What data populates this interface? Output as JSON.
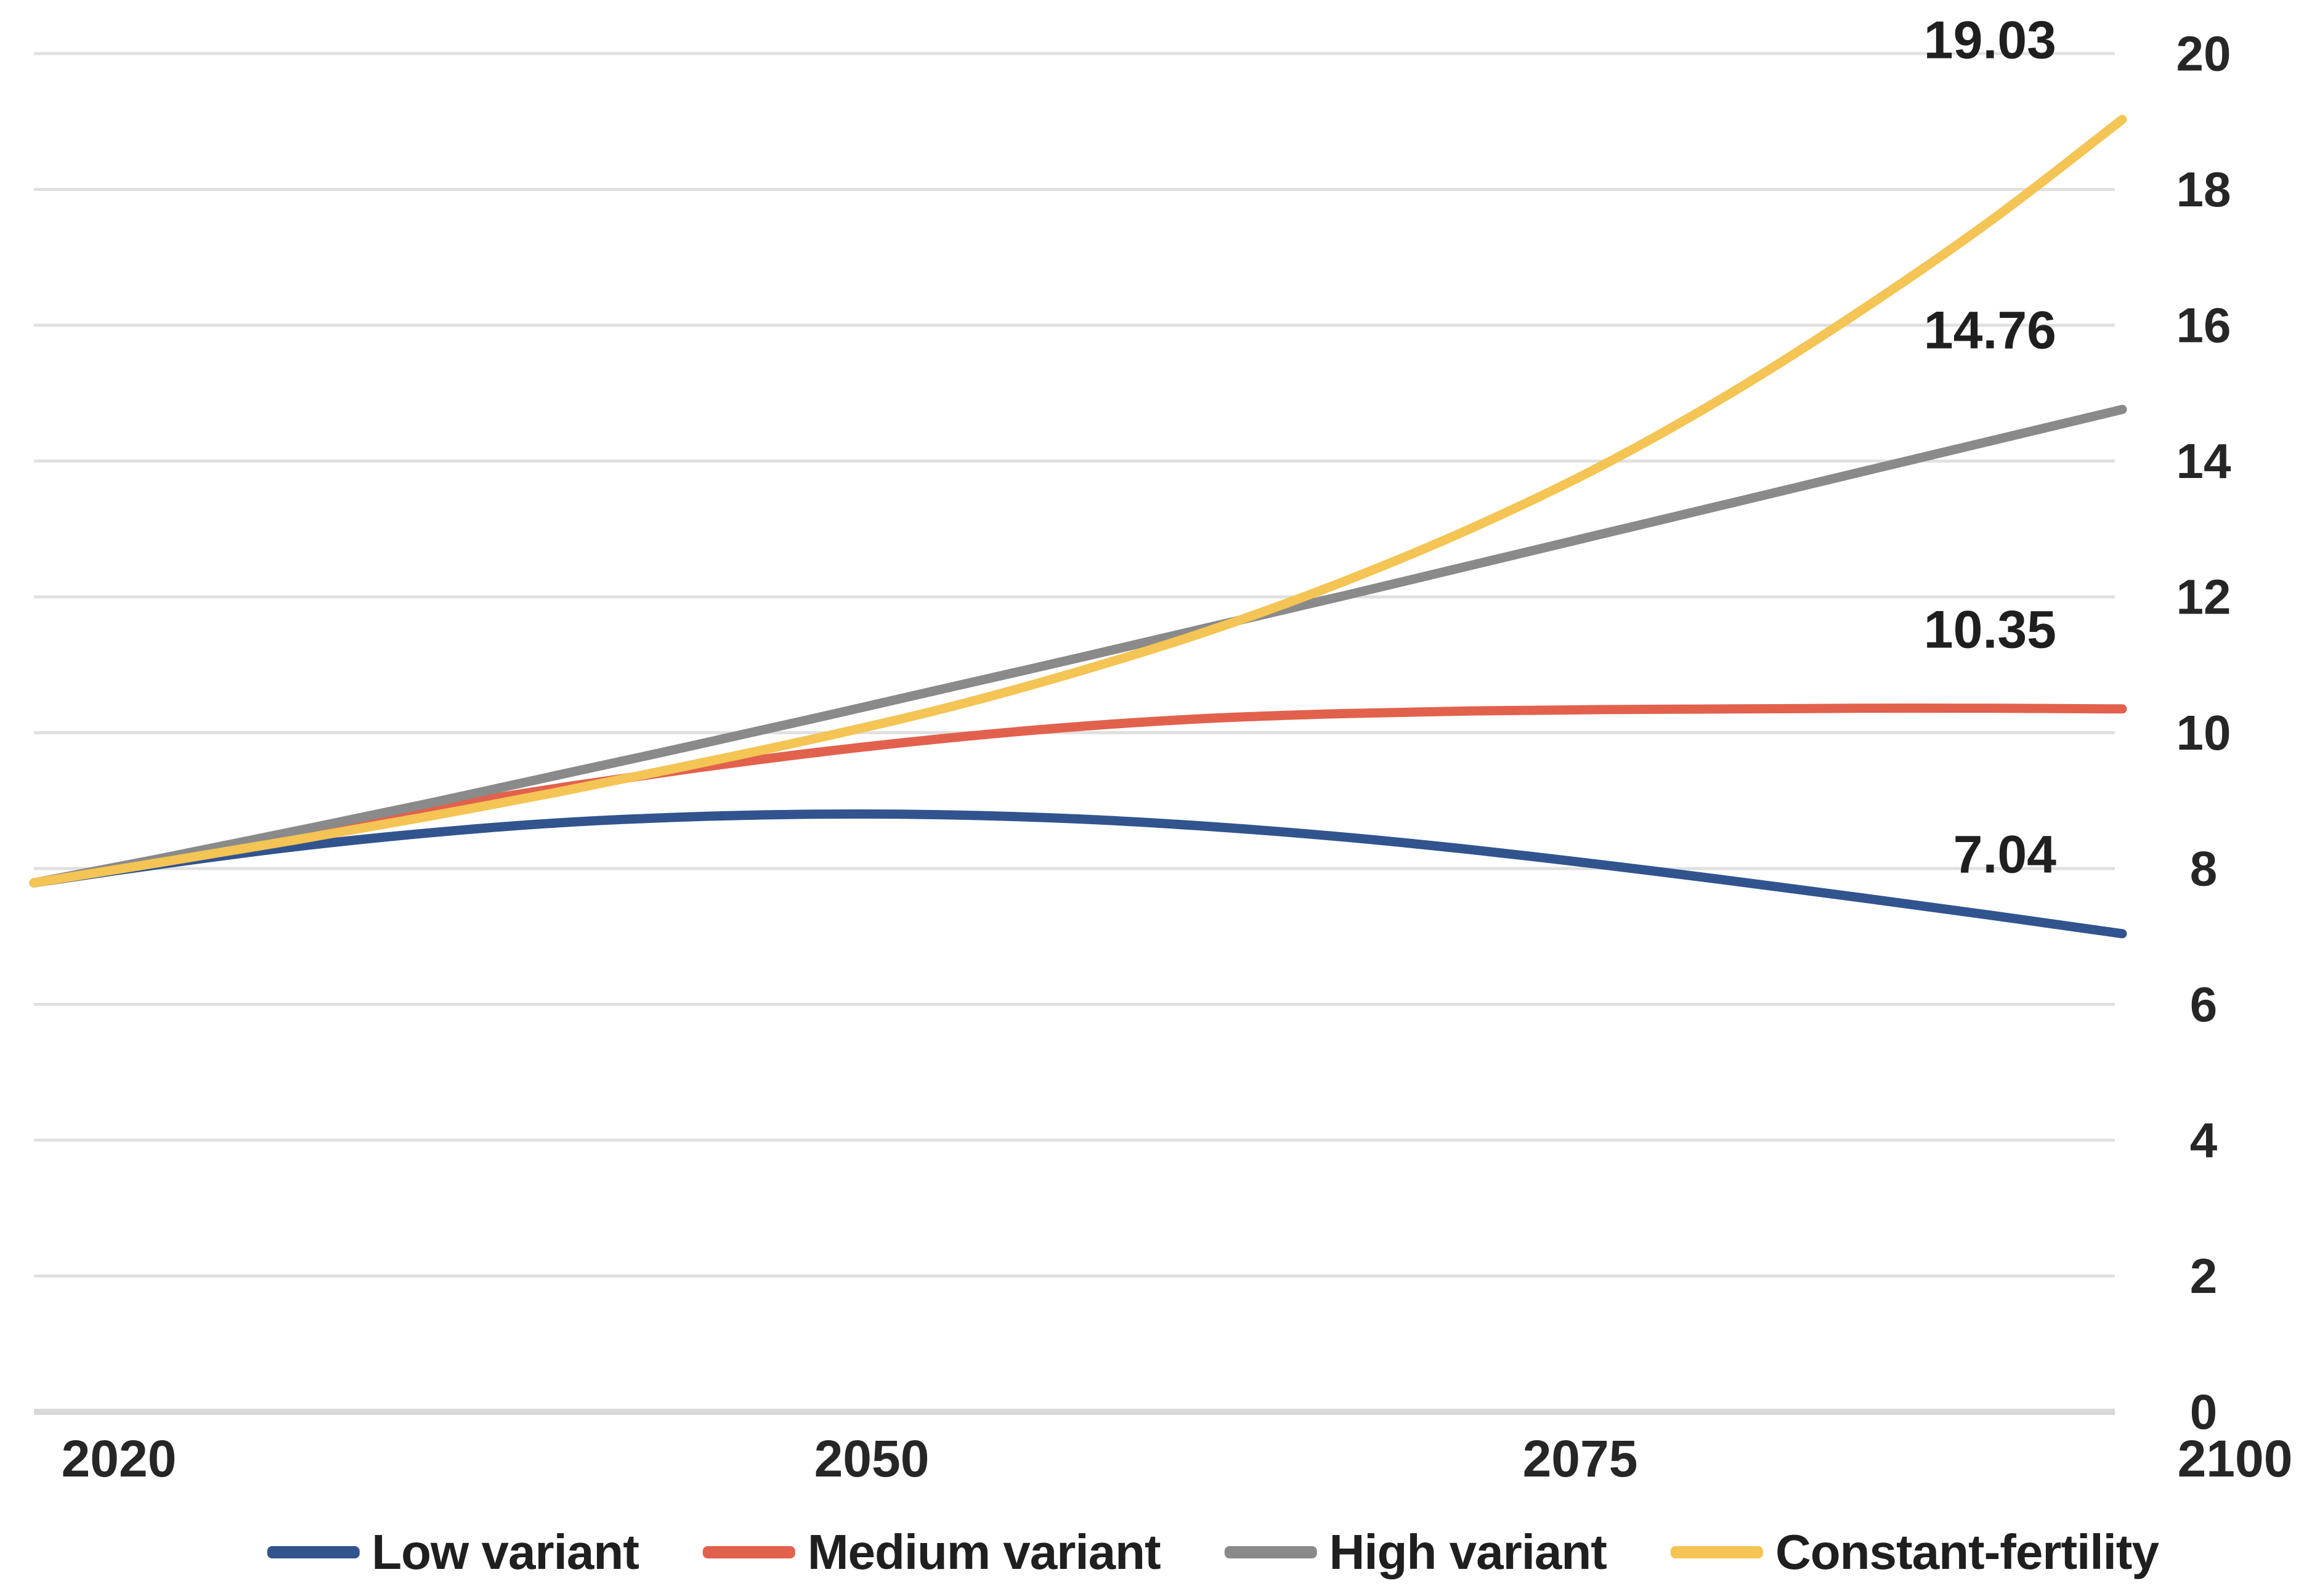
{
  "chart_data": {
    "type": "line",
    "title": "",
    "x": [
      2020,
      2025,
      2030,
      2035,
      2040,
      2045,
      2050,
      2055,
      2060,
      2065,
      2070,
      2075,
      2080,
      2085,
      2090,
      2095,
      2100
    ],
    "x_axis": {
      "tick_labels": [
        "2020",
        "2050",
        "2075",
        "2100"
      ],
      "tick_years": [
        2020,
        2050,
        2075,
        2100
      ]
    },
    "y_axis": {
      "min": 0,
      "max": 20,
      "step": 2,
      "side": "right",
      "tick_labels": [
        "0",
        "2",
        "4",
        "6",
        "8",
        "10",
        "12",
        "14",
        "16",
        "18",
        "20"
      ]
    },
    "grid": true,
    "legend_position": "bottom",
    "series": [
      {
        "name": "Low variant",
        "color": "#31548F",
        "end_label": "7.04",
        "values": [
          7.79,
          8.07,
          8.32,
          8.52,
          8.67,
          8.76,
          8.8,
          8.79,
          8.73,
          8.62,
          8.47,
          8.28,
          8.06,
          7.82,
          7.57,
          7.31,
          7.04
        ]
      },
      {
        "name": "Medium variant",
        "color": "#E2614D",
        "end_label": "10.35",
        "values": [
          7.79,
          8.15,
          8.52,
          8.87,
          9.18,
          9.46,
          9.71,
          9.92,
          10.09,
          10.21,
          10.28,
          10.32,
          10.34,
          10.35,
          10.36,
          10.36,
          10.35
        ]
      },
      {
        "name": "High variant",
        "color": "#8A8A8A",
        "end_label": "14.76",
        "values": [
          7.79,
          8.16,
          8.55,
          8.95,
          9.37,
          9.79,
          10.22,
          10.66,
          11.1,
          11.55,
          12.0,
          12.46,
          12.92,
          13.38,
          13.84,
          14.3,
          14.76
        ]
      },
      {
        "name": "Constant-fertility",
        "color": "#F4C454",
        "end_label": "19.03",
        "values": [
          7.79,
          8.1,
          8.42,
          8.76,
          9.12,
          9.51,
          9.92,
          10.37,
          10.9,
          11.5,
          12.2,
          13.0,
          13.92,
          15.0,
          16.22,
          17.55,
          19.03
        ]
      }
    ]
  },
  "colors": {
    "grid": "#e0e0e0",
    "baseline": "#d9d9d9",
    "tick_text": "#262626",
    "label_text": "#1f1f1f",
    "background": "#ffffff"
  }
}
